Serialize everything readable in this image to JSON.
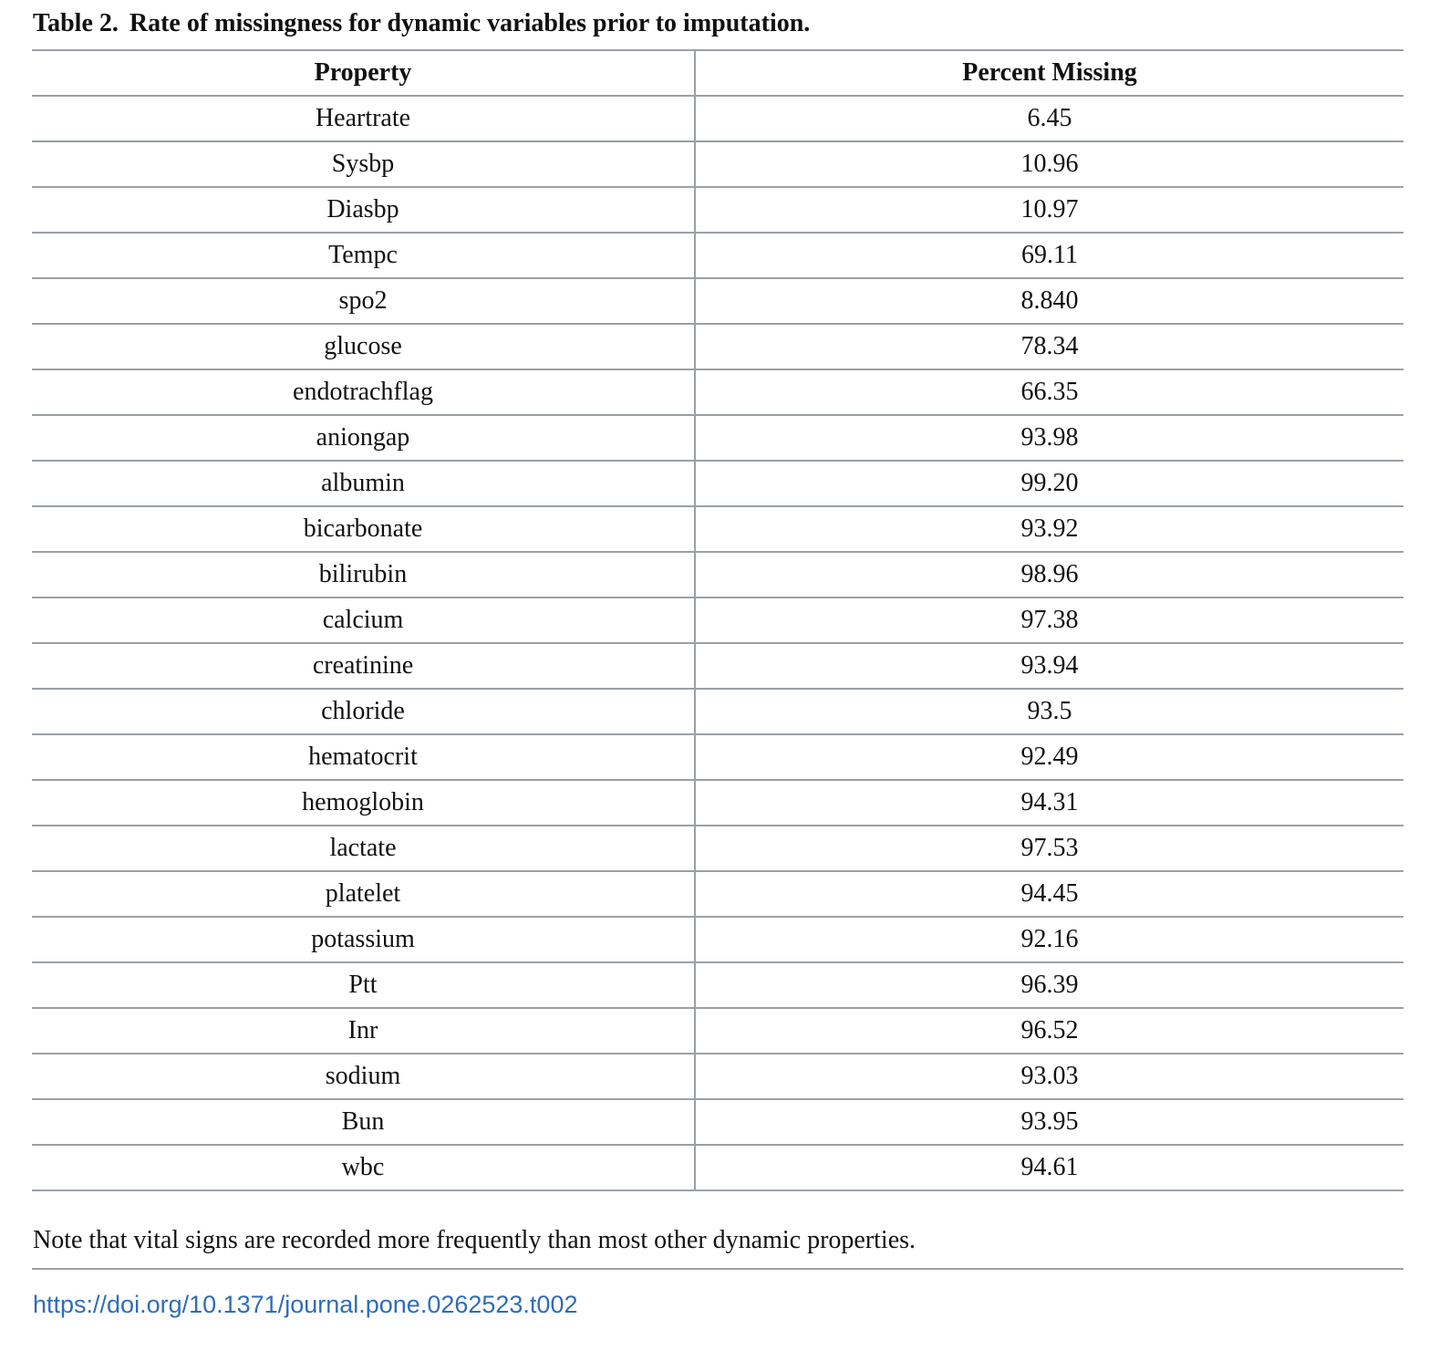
{
  "caption": {
    "label": "Table 2.",
    "text": "Rate of missingness for dynamic variables prior to imputation."
  },
  "table": {
    "headers": [
      "Property",
      "Percent Missing"
    ],
    "rows": [
      [
        "Heartrate",
        "6.45"
      ],
      [
        "Sysbp",
        "10.96"
      ],
      [
        "Diasbp",
        "10.97"
      ],
      [
        "Tempc",
        "69.11"
      ],
      [
        "spo2",
        "8.840"
      ],
      [
        "glucose",
        "78.34"
      ],
      [
        "endotrachflag",
        "66.35"
      ],
      [
        "aniongap",
        "93.98"
      ],
      [
        "albumin",
        "99.20"
      ],
      [
        "bicarbonate",
        "93.92"
      ],
      [
        "bilirubin",
        "98.96"
      ],
      [
        "calcium",
        "97.38"
      ],
      [
        "creatinine",
        "93.94"
      ],
      [
        "chloride",
        "93.5"
      ],
      [
        "hematocrit",
        "92.49"
      ],
      [
        "hemoglobin",
        "94.31"
      ],
      [
        "lactate",
        "97.53"
      ],
      [
        "platelet",
        "94.45"
      ],
      [
        "potassium",
        "92.16"
      ],
      [
        "Ptt",
        "96.39"
      ],
      [
        "Inr",
        "96.52"
      ],
      [
        "sodium",
        "93.03"
      ],
      [
        "Bun",
        "93.95"
      ],
      [
        "wbc",
        "94.61"
      ]
    ]
  },
  "note": "Note that vital signs are recorded more frequently than most other dynamic properties.",
  "doi": "https://doi.org/10.1371/journal.pone.0262523.t002",
  "colors": {
    "rule": "#9ba0a6",
    "link": "#2f6db5"
  }
}
